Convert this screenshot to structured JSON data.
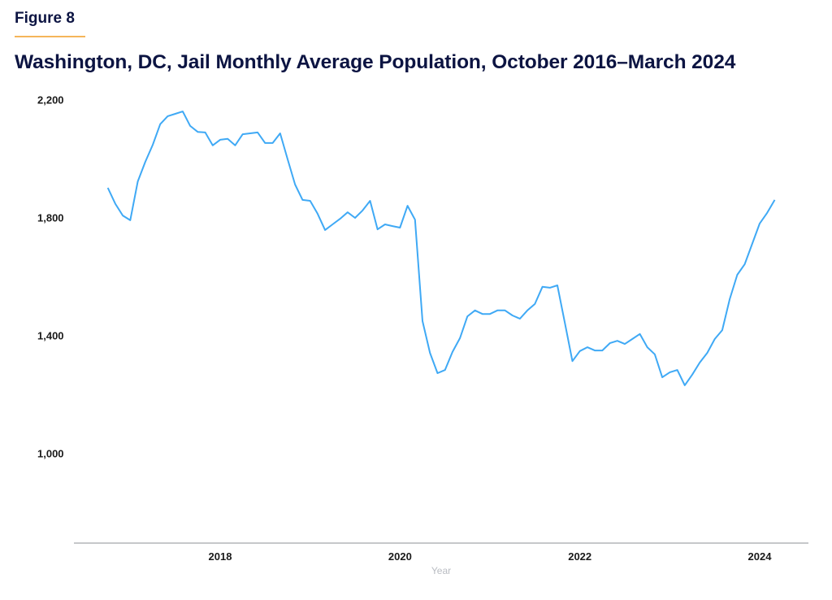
{
  "figure_label": "Figure 8",
  "colors": {
    "title": "#0c1442",
    "rule": "#f5b55a",
    "line": "#3fa9f5",
    "axis": "#b3b5b9"
  },
  "chart_data": {
    "type": "line",
    "title": "Washington, DC, Jail Monthly Average Population, October 2016–March 2024",
    "xlabel": "Year",
    "ylabel": "",
    "start_month": "2016-10",
    "end_month": "2024-03",
    "x_ticks": [
      {
        "label": "2018",
        "value": 2018
      },
      {
        "label": "2020",
        "value": 2020
      },
      {
        "label": "2022",
        "value": 2022
      },
      {
        "label": "2024",
        "value": 2024
      }
    ],
    "y_ticks": [
      {
        "label": "2,200",
        "value": 2200
      },
      {
        "label": "1,800",
        "value": 1800
      },
      {
        "label": "1,400",
        "value": 1400
      },
      {
        "label": "1,000",
        "value": 1000
      }
    ],
    "xlim": [
      2016.55,
      2024.6
    ],
    "ylim": [
      694,
      2200
    ],
    "grid": false,
    "legend": "none",
    "series": [
      {
        "name": "Monthly average population",
        "values": [
          1902,
          1848,
          1808,
          1792,
          1924,
          1990,
          2048,
          2118,
          2145,
          2153,
          2161,
          2112,
          2092,
          2090,
          2046,
          2065,
          2068,
          2046,
          2084,
          2087,
          2090,
          2054,
          2054,
          2087,
          1999,
          1913,
          1861,
          1858,
          1814,
          1759,
          1778,
          1797,
          1819,
          1800,
          1825,
          1858,
          1761,
          1778,
          1772,
          1767,
          1841,
          1794,
          1450,
          1342,
          1273,
          1284,
          1345,
          1392,
          1466,
          1486,
          1474,
          1474,
          1486,
          1486,
          1469,
          1458,
          1486,
          1508,
          1566,
          1563,
          1571,
          1444,
          1314,
          1348,
          1361,
          1350,
          1350,
          1375,
          1383,
          1372,
          1389,
          1406,
          1361,
          1337,
          1259,
          1276,
          1284,
          1232,
          1268,
          1309,
          1342,
          1389,
          1419,
          1524,
          1607,
          1643,
          1712,
          1781,
          1817,
          1861
        ]
      }
    ]
  }
}
